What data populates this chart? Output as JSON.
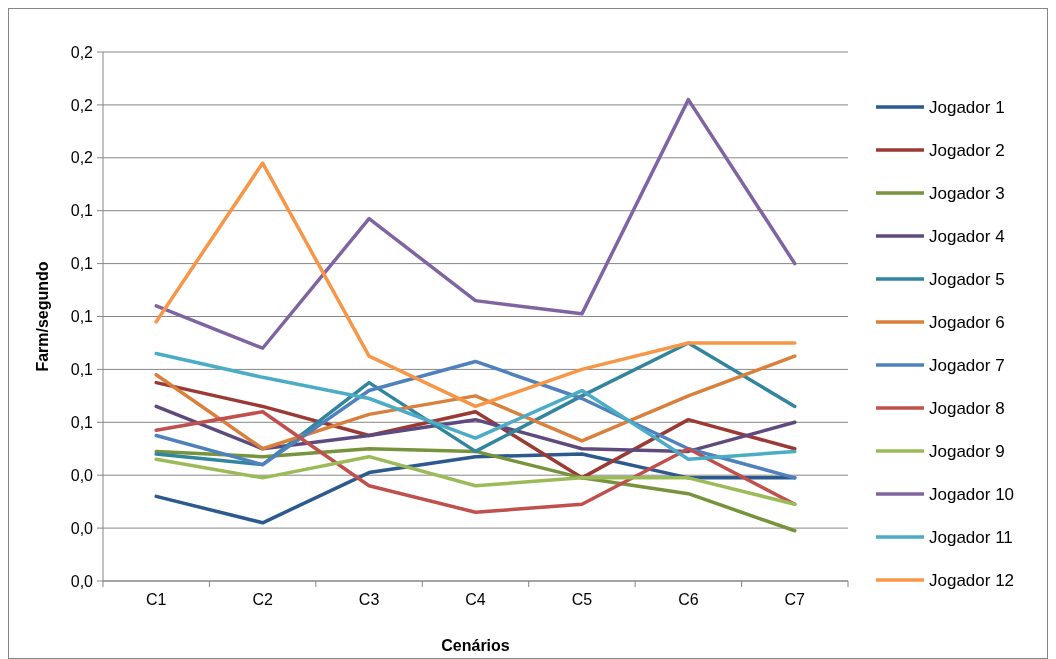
{
  "chart_data": {
    "type": "line",
    "xlabel": "Cenários",
    "ylabel": "Farm/segundo",
    "categories": [
      "C1",
      "C2",
      "C3",
      "C4",
      "C5",
      "C6",
      "C7"
    ],
    "ylim": [
      0,
      0.2
    ],
    "yticks": [
      {
        "value": 0,
        "label": "0,0"
      },
      {
        "value": 0.02,
        "label": "0,0"
      },
      {
        "value": 0.04,
        "label": "0,0"
      },
      {
        "value": 0.06,
        "label": "0,1"
      },
      {
        "value": 0.08,
        "label": "0,1"
      },
      {
        "value": 0.1,
        "label": "0,1"
      },
      {
        "value": 0.12,
        "label": "0,1"
      },
      {
        "value": 0.14,
        "label": "0,1"
      },
      {
        "value": 0.16,
        "label": "0,2"
      },
      {
        "value": 0.18,
        "label": "0,2"
      },
      {
        "value": 0.2,
        "label": "0,2"
      }
    ],
    "grid": "y",
    "legend": "right",
    "marker": "none",
    "line_style": "solid",
    "series": [
      {
        "name": "Jogador 1",
        "color": "#2c5a8f",
        "values": [
          0.032,
          0.022,
          0.041,
          0.047,
          0.048,
          0.039,
          0.039
        ]
      },
      {
        "name": "Jogador 2",
        "color": "#9b3a35",
        "values": [
          0.075,
          0.066,
          0.055,
          0.064,
          0.039,
          0.061,
          0.05
        ]
      },
      {
        "name": "Jogador 3",
        "color": "#77933c",
        "values": [
          0.049,
          0.047,
          0.05,
          0.049,
          0.039,
          0.033,
          0.019
        ]
      },
      {
        "name": "Jogador 4",
        "color": "#5f4a7e",
        "values": [
          0.066,
          0.05,
          0.055,
          0.061,
          0.05,
          0.049,
          0.06
        ]
      },
      {
        "name": "Jogador 5",
        "color": "#31859c",
        "values": [
          0.048,
          0.044,
          0.075,
          0.049,
          0.07,
          0.09,
          0.066
        ]
      },
      {
        "name": "Jogador 6",
        "color": "#d9803c",
        "values": [
          0.078,
          0.05,
          0.063,
          0.07,
          0.053,
          0.07,
          0.085
        ]
      },
      {
        "name": "Jogador 7",
        "color": "#4f81bd",
        "values": [
          0.055,
          0.044,
          0.072,
          0.083,
          0.069,
          0.05,
          0.039
        ]
      },
      {
        "name": "Jogador 8",
        "color": "#c0504d",
        "values": [
          0.057,
          0.064,
          0.036,
          0.026,
          0.029,
          0.05,
          0.029
        ]
      },
      {
        "name": "Jogador 9",
        "color": "#9bbb59",
        "values": [
          0.046,
          0.039,
          0.047,
          0.036,
          0.039,
          0.039,
          0.029
        ]
      },
      {
        "name": "Jogador 10",
        "color": "#8064a2",
        "values": [
          0.104,
          0.088,
          0.137,
          0.106,
          0.101,
          0.182,
          0.12
        ]
      },
      {
        "name": "Jogador 11",
        "color": "#4bacc6",
        "values": [
          0.086,
          0.077,
          0.069,
          0.054,
          0.072,
          0.046,
          0.049
        ]
      },
      {
        "name": "Jogador 12",
        "color": "#f79646",
        "values": [
          0.098,
          0.158,
          0.085,
          0.066,
          0.08,
          0.09,
          0.09
        ]
      }
    ]
  }
}
